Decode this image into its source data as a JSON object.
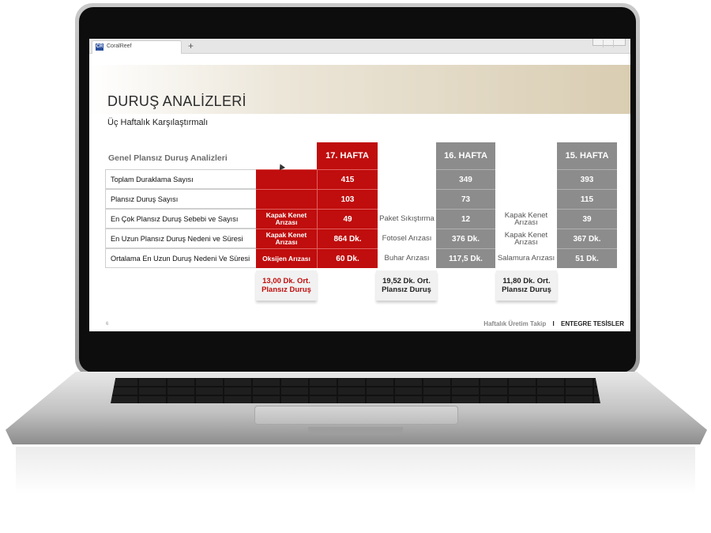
{
  "browser": {
    "tab_icon": "CR",
    "tab_title": "CoralReef",
    "new_tab_label": "+"
  },
  "slide": {
    "title": "DURUŞ ANALİZLERİ",
    "subtitle": "Üç Haftalık Karşılaştırmalı",
    "section_title": "Genel Plansız Duruş Analizleri",
    "week_headers": [
      "17. HAFTA",
      "16. HAFTA",
      "15. HAFTA"
    ],
    "rows": [
      {
        "label": "Toplam Duraklama Sayısı",
        "w17_reason": "",
        "w17_value": "415",
        "w16_reason": "",
        "w16_value": "349",
        "w15_reason": "",
        "w15_value": "393"
      },
      {
        "label": "Plansız Duruş Sayısı",
        "w17_reason": "",
        "w17_value": "103",
        "w16_reason": "",
        "w16_value": "73",
        "w15_reason": "",
        "w15_value": "115"
      },
      {
        "label": "En Çok Plansız Duruş Sebebi ve Sayısı",
        "w17_reason": "Kapak Kenet Arızası",
        "w17_value": "49",
        "w16_reason": "Paket Sıkıştırma",
        "w16_value": "12",
        "w15_reason": "Kapak Kenet Arızası",
        "w15_value": "39"
      },
      {
        "label": "En Uzun Plansız Duruş Nedeni ve Süresi",
        "w17_reason": "Kapak Kenet Arızası",
        "w17_value": "864 Dk.",
        "w16_reason": "Fotosel Arızası",
        "w16_value": "376 Dk.",
        "w15_reason": "Kapak Kenet Arızası",
        "w15_value": "367 Dk."
      },
      {
        "label": "Ortalama En Uzun Duruş Nedeni Ve Süresi",
        "w17_reason": "Oksijen Arızası",
        "w17_value": "60 Dk.",
        "w16_reason": "Buhar Arızası",
        "w16_value": "117,5 Dk.",
        "w15_reason": "Salamura Arızası",
        "w15_value": "51 Dk."
      }
    ],
    "averages": [
      "13,00 Dk. Ort. Plansız Duruş",
      "19,52 Dk. Ort. Plansız Duruş",
      "11,80 Dk. Ort. Plansız Duruş"
    ],
    "page_number": "6",
    "footer_left": "Haftalık Üretim Takip",
    "footer_sep": "I",
    "footer_right": "ENTEGRE TESİSLER"
  },
  "colors": {
    "week17": "#c00d0d",
    "week16": "#8c8c8c",
    "week15": "#8c8c8c"
  }
}
